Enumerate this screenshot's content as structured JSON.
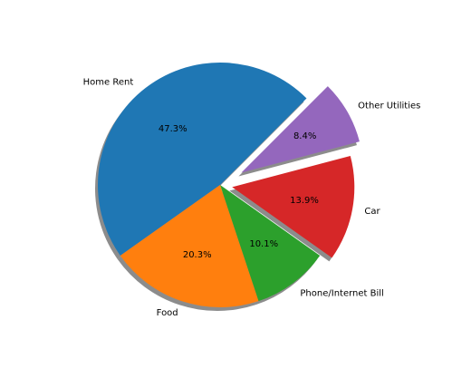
{
  "chart_data": {
    "type": "pie",
    "slices": [
      {
        "label": "Home Rent",
        "value": 47.3,
        "pct_label": "47.3%",
        "color": "#1f77b4",
        "explode": 0
      },
      {
        "label": "Food",
        "value": 20.3,
        "pct_label": "20.3%",
        "color": "#ff7f0e",
        "explode": 0
      },
      {
        "label": "Phone/Internet Bill",
        "value": 10.1,
        "pct_label": "10.1%",
        "color": "#2ca02c",
        "explode": 0
      },
      {
        "label": "Car",
        "value": 13.9,
        "pct_label": "13.9%",
        "color": "#d62728",
        "explode": 0.1
      },
      {
        "label": "Other Utilities",
        "value": 8.4,
        "pct_label": "8.4%",
        "color": "#9467bd",
        "explode": 0.2
      }
    ],
    "start_angle_deg": 45,
    "direction": "counterclockwise",
    "shadow": true
  }
}
